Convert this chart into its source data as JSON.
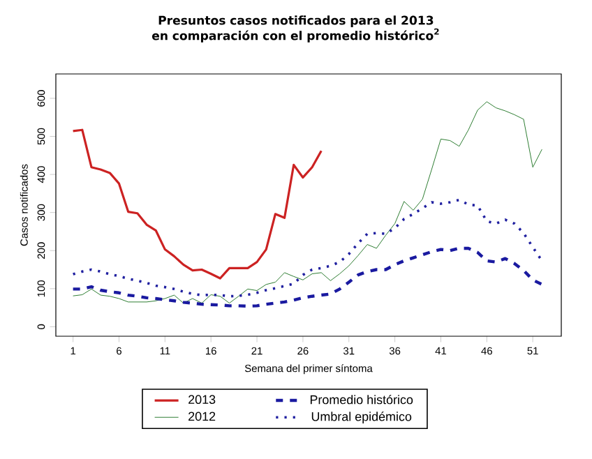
{
  "chart_data": {
    "type": "line",
    "title": "Presuntos casos notificados para el 2013 en comparación con el promedio histórico$^{2}$",
    "xlabel": "Semana del primer síntoma",
    "ylabel": "Casos notificados",
    "x": [
      1,
      2,
      3,
      4,
      5,
      6,
      7,
      8,
      9,
      10,
      11,
      12,
      13,
      14,
      15,
      16,
      17,
      18,
      19,
      20,
      21,
      22,
      23,
      24,
      25,
      26,
      27,
      28,
      29,
      30,
      31,
      32,
      33,
      34,
      35,
      36,
      37,
      38,
      39,
      40,
      41,
      42,
      43,
      44,
      45,
      46,
      47,
      48,
      49,
      50,
      51,
      52
    ],
    "series": [
      {
        "name": "2013",
        "color": "#cc2222",
        "line_style": "solid",
        "x": [
          1,
          2,
          3,
          4,
          5,
          6,
          7,
          8,
          9,
          10,
          11,
          12,
          13,
          14,
          15,
          16,
          17,
          18,
          19,
          20,
          21,
          22,
          23,
          24,
          25,
          26,
          27,
          28
        ],
        "values": [
          514,
          517,
          419,
          413,
          404,
          376,
          302,
          298,
          268,
          253,
          203,
          185,
          163,
          148,
          150,
          139,
          127,
          154,
          154,
          154,
          170,
          203,
          296,
          286,
          425,
          392,
          419,
          462
        ]
      },
      {
        "name": "2012",
        "color": "#2e7d32",
        "line_style": "solid",
        "values": [
          81,
          84,
          99,
          83,
          80,
          74,
          65,
          65,
          65,
          68,
          74,
          83,
          62,
          74,
          62,
          84,
          80,
          62,
          80,
          99,
          95,
          111,
          117,
          142,
          132,
          123,
          139,
          142,
          121,
          139,
          160,
          187,
          216,
          206,
          240,
          271,
          329,
          306,
          335,
          413,
          493,
          489,
          474,
          517,
          569,
          591,
          575,
          567,
          557,
          545,
          419,
          466
        ]
      },
      {
        "name": "Promedio histórico",
        "color": "#1a1aa0",
        "line_style": "dashed",
        "values": [
          99,
          99,
          105,
          96,
          92,
          89,
          83,
          80,
          76,
          74,
          71,
          68,
          64,
          62,
          59,
          58,
          57,
          55,
          55,
          54,
          55,
          59,
          62,
          65,
          70,
          76,
          80,
          83,
          86,
          99,
          117,
          136,
          145,
          150,
          150,
          163,
          173,
          181,
          189,
          197,
          203,
          200,
          206,
          206,
          195,
          173,
          170,
          179,
          166,
          148,
          123,
          111
        ]
      },
      {
        "name": "Umbral epidémico",
        "color": "#2020a0",
        "line_style": "dotted",
        "values": [
          138,
          145,
          150,
          145,
          138,
          133,
          126,
          121,
          115,
          108,
          104,
          99,
          92,
          86,
          83,
          84,
          83,
          80,
          81,
          84,
          89,
          96,
          101,
          107,
          113,
          136,
          150,
          154,
          160,
          170,
          191,
          219,
          244,
          246,
          244,
          259,
          283,
          296,
          311,
          327,
          323,
          327,
          333,
          321,
          318,
          277,
          271,
          281,
          271,
          246,
          209,
          173
        ]
      }
    ],
    "xlim": [
      -0.87,
      54.1
    ],
    "ylim": [
      -25,
      664
    ],
    "xticks": [
      1,
      6,
      11,
      16,
      21,
      26,
      31,
      36,
      41,
      46,
      51
    ],
    "yticks": [
      0,
      100,
      200,
      300,
      400,
      500,
      600
    ],
    "grid": false,
    "legend": "bottom",
    "marker": "none"
  }
}
